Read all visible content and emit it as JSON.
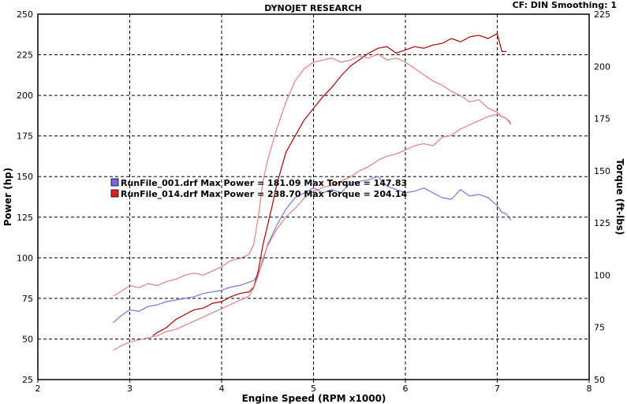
{
  "chart_data": {
    "type": "line",
    "title": "DYNOJET RESEARCH",
    "corner_note": "CF: DIN  Smoothing: 1",
    "xlabel": "Engine Speed (RPM x1000)",
    "ylabel_left": "Power (hp)",
    "ylabel_right": "Torque (ft-lbs)",
    "xlim": [
      2,
      8
    ],
    "ylim_left": [
      25,
      250
    ],
    "ylim_right": [
      50,
      225
    ],
    "x_ticks": [
      "2",
      "3",
      "4",
      "5",
      "6",
      "7",
      "8"
    ],
    "y_left_ticks": [
      "25",
      "50",
      "75",
      "100",
      "125",
      "150",
      "175",
      "200",
      "225",
      "250"
    ],
    "y_right_ticks": [
      "50",
      "75",
      "100",
      "125",
      "150",
      "175",
      "200",
      "225"
    ],
    "grid": true,
    "legend_position": "center-left",
    "legend": [
      {
        "label": "RunFile_001.drf Max Power = 181.09     Max Torque = 147.83",
        "color": "#6a6ee0"
      },
      {
        "label": "RunFile_014.drf Max Power = 238.70     Max Torque = 204.14",
        "color": "#e02020"
      }
    ],
    "series": [
      {
        "id": "run001-power",
        "axis": "left",
        "color": "#7777dd",
        "x": [
          2.82,
          2.9,
          3.0,
          3.1,
          3.2,
          3.3,
          3.4,
          3.5,
          3.6,
          3.7,
          3.8,
          3.9,
          4.0,
          4.1,
          4.2,
          4.3,
          4.35,
          4.4,
          4.45,
          4.5,
          4.6,
          4.7,
          4.8,
          4.9,
          5.0,
          5.1,
          5.2,
          5.3,
          5.4,
          5.5,
          5.6,
          5.7,
          5.8,
          5.9,
          6.0,
          6.1,
          6.2,
          6.3,
          6.4,
          6.5,
          6.6,
          6.7,
          6.8,
          6.9,
          7.0,
          7.05,
          7.1,
          7.15
        ],
        "y": [
          60,
          64,
          68,
          67,
          70,
          71,
          73,
          74,
          75,
          76,
          78,
          79,
          80,
          82,
          83,
          85,
          86,
          90,
          98,
          108,
          120,
          130,
          137,
          140,
          143,
          140,
          142,
          140,
          146,
          147,
          148,
          150,
          144,
          142,
          140,
          141,
          143,
          140,
          137,
          136,
          142,
          138,
          139,
          137,
          132,
          128,
          127,
          123
        ]
      },
      {
        "id": "run014-power",
        "axis": "left",
        "color": "#b00000",
        "x": [
          3.25,
          3.3,
          3.4,
          3.5,
          3.6,
          3.7,
          3.8,
          3.9,
          4.0,
          4.1,
          4.2,
          4.3,
          4.35,
          4.4,
          4.45,
          4.5,
          4.55,
          4.6,
          4.65,
          4.7,
          4.8,
          4.9,
          5.0,
          5.1,
          5.2,
          5.3,
          5.4,
          5.5,
          5.6,
          5.7,
          5.8,
          5.9,
          6.0,
          6.1,
          6.2,
          6.3,
          6.4,
          6.5,
          6.6,
          6.7,
          6.8,
          6.9,
          7.0,
          7.05,
          7.1
        ],
        "y": [
          52,
          54,
          57,
          62,
          65,
          68,
          69,
          72,
          73,
          76,
          78,
          79,
          82,
          92,
          108,
          120,
          132,
          145,
          155,
          165,
          175,
          185,
          192,
          199,
          205,
          212,
          218,
          222,
          226,
          229,
          230,
          226,
          228,
          230,
          229,
          231,
          232,
          235,
          233,
          236,
          237,
          235,
          238,
          227,
          227
        ]
      },
      {
        "id": "run014-torque",
        "axis": "right",
        "color": "#e08080",
        "x": [
          2.82,
          2.9,
          3.0,
          3.1,
          3.2,
          3.3,
          3.4,
          3.5,
          3.6,
          3.7,
          3.8,
          3.9,
          4.0,
          4.1,
          4.2,
          4.3,
          4.35,
          4.4,
          4.45,
          4.5,
          4.6,
          4.7,
          4.8,
          4.9,
          5.0,
          5.1,
          5.2,
          5.3,
          5.4,
          5.5,
          5.6,
          5.7,
          5.8,
          5.9,
          6.0,
          6.1,
          6.2,
          6.3,
          6.4,
          6.5,
          6.6,
          6.7,
          6.8,
          6.9,
          7.0,
          7.05,
          7.1,
          7.15
        ],
        "y": [
          90,
          92,
          95,
          94,
          96,
          95,
          97,
          98,
          100,
          101,
          100,
          102,
          104,
          107,
          108,
          110,
          115,
          128,
          145,
          155,
          170,
          183,
          193,
          199,
          202,
          203,
          204,
          202,
          203,
          205,
          204,
          206,
          203,
          204,
          202,
          199,
          196,
          193,
          191,
          188,
          186,
          183,
          184,
          180,
          178,
          176,
          175,
          173
        ]
      },
      {
        "id": "run014-torque-low",
        "axis": "right",
        "color": "#e08080",
        "x": [
          2.82,
          2.9,
          3.0,
          3.1,
          3.2,
          3.3,
          3.4,
          3.5,
          3.6,
          3.7,
          3.8,
          3.9,
          4.0,
          4.1,
          4.2,
          4.3,
          4.35,
          4.4,
          4.45,
          4.5,
          4.6,
          4.7,
          4.8,
          4.9,
          5.0,
          5.1,
          5.2,
          5.3,
          5.4,
          5.5,
          5.6,
          5.7,
          5.8,
          5.9,
          6.0,
          6.1,
          6.2,
          6.3,
          6.4,
          6.5,
          6.6,
          6.7,
          6.8,
          6.9,
          7.0,
          7.05,
          7.1,
          7.15
        ],
        "y": [
          64,
          66,
          68,
          69,
          70,
          71,
          73,
          74,
          76,
          78,
          80,
          82,
          84,
          86,
          88,
          90,
          94,
          100,
          108,
          114,
          122,
          128,
          132,
          137,
          140,
          142,
          143,
          145,
          147,
          150,
          152,
          155,
          157,
          158,
          160,
          162,
          163,
          162,
          166,
          167,
          170,
          172,
          174,
          176,
          177,
          176,
          175,
          172
        ]
      }
    ]
  }
}
